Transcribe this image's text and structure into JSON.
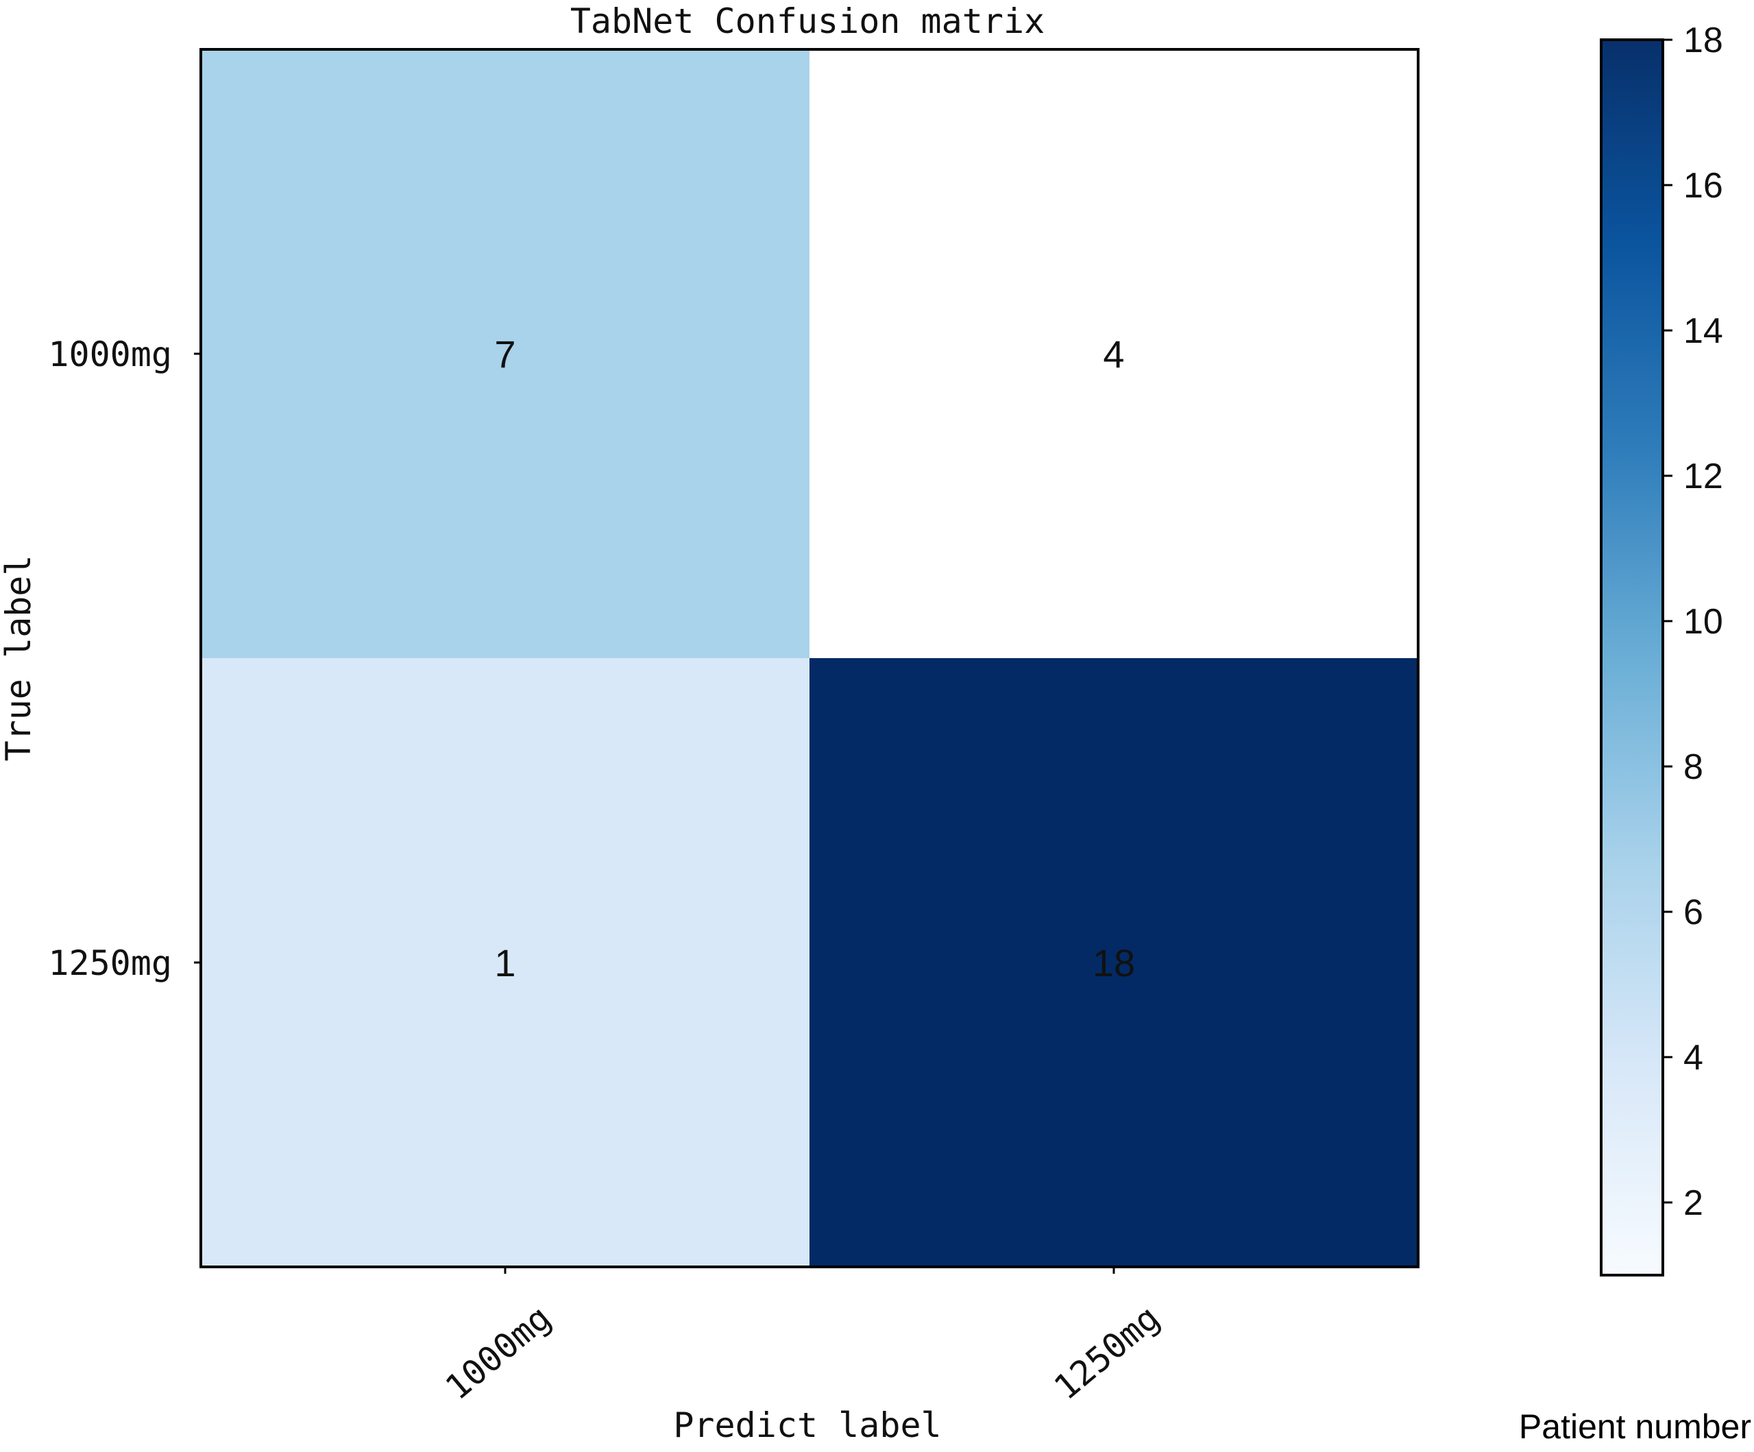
{
  "chart_data": {
    "type": "heatmap",
    "title": "TabNet Confusion matrix",
    "xlabel": "Predict label",
    "ylabel": "True label",
    "x_categories": [
      "1000mg",
      "1250mg"
    ],
    "y_categories": [
      "1000mg",
      "1250mg"
    ],
    "matrix": [
      [
        7,
        4
      ],
      [
        1,
        18
      ]
    ],
    "colormap": "Blues",
    "colorbar": {
      "label": "Patient number",
      "range": [
        1,
        18
      ],
      "ticks": [
        2,
        4,
        6,
        8,
        10,
        12,
        14,
        16,
        18
      ]
    },
    "cell_colors": [
      [
        "#a9d2eb",
        "#ffffff"
      ],
      [
        "#d8e8f8",
        "#032a65"
      ]
    ],
    "colorbar_gradient": [
      "#f7fbff",
      "#d8e8f8",
      "#a9d2eb",
      "#6aaed6",
      "#2f7dbb",
      "#0b559f",
      "#08306b"
    ]
  }
}
